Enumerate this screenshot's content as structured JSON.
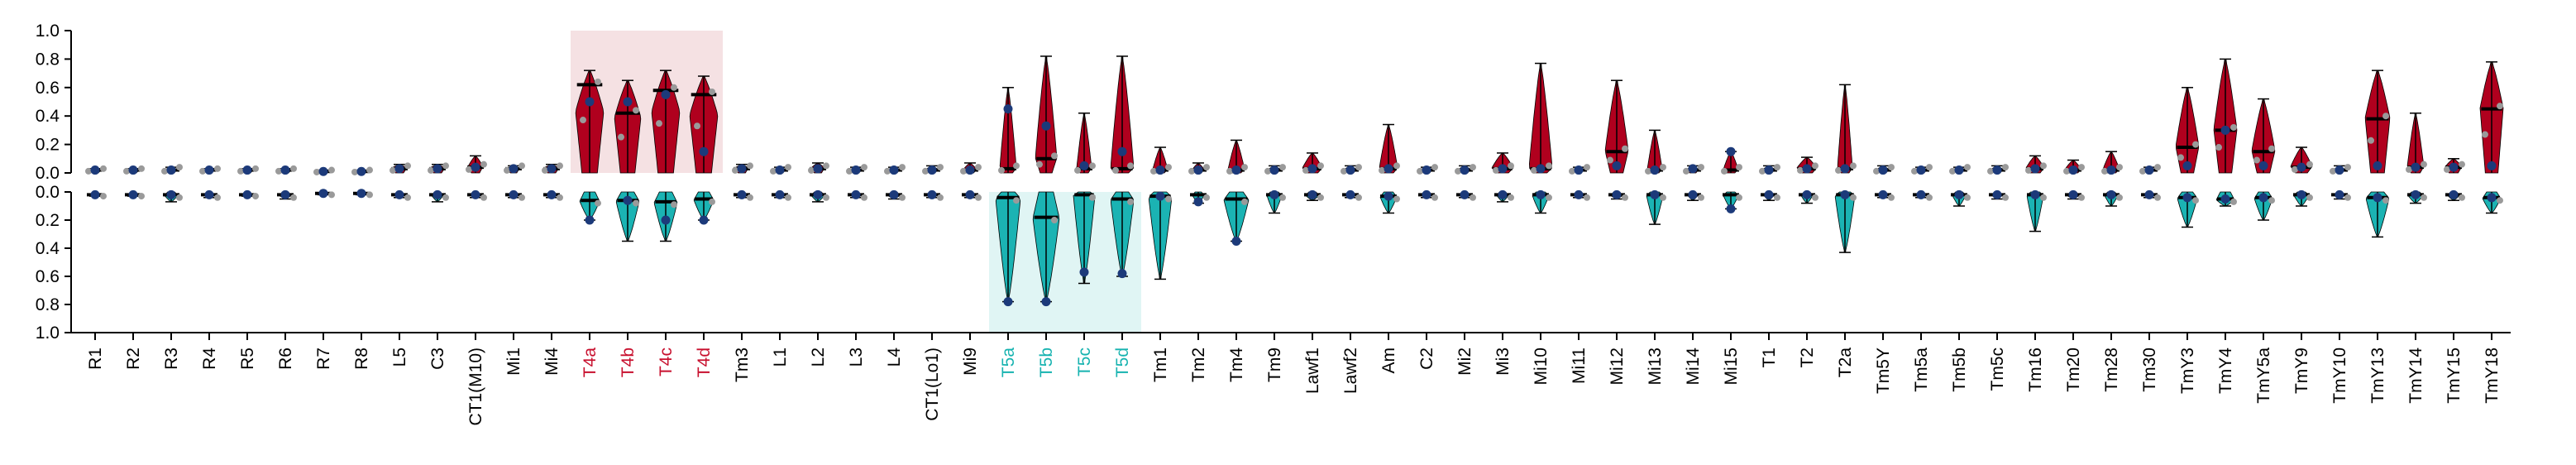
{
  "chart_data": {
    "type": "violin",
    "categories": [
      "R1",
      "R2",
      "R3",
      "R4",
      "R5",
      "R6",
      "R7",
      "R8",
      "L5",
      "C3",
      "CT1(M10)",
      "Mi1",
      "Mi4",
      "T4a",
      "T4b",
      "T4c",
      "T4d",
      "Tm3",
      "L1",
      "L2",
      "L3",
      "L4",
      "CT1(Lo1)",
      "Mi9",
      "T5a",
      "T5b",
      "T5c",
      "T5d",
      "Tm1",
      "Tm2",
      "Tm4",
      "Tm9",
      "Lawf1",
      "Lawf2",
      "Am",
      "C2",
      "Mi2",
      "Mi3",
      "Mi10",
      "Mi11",
      "Mi12",
      "Mi13",
      "Mi14",
      "Mi15",
      "T1",
      "T2",
      "T2a",
      "Tm5Y",
      "Tm5a",
      "Tm5b",
      "Tm5c",
      "Tm16",
      "Tm20",
      "Tm28",
      "Tm30",
      "TmY3",
      "TmY4",
      "TmY5a",
      "TmY9",
      "TmY10",
      "TmY13",
      "TmY14",
      "TmY15",
      "TmY18"
    ],
    "y_ticks": [
      "0.0",
      "0.2",
      "0.4",
      "0.6",
      "0.8",
      "1.0"
    ],
    "ylim": [
      0,
      1
    ],
    "colors": {
      "top": "#b0001e",
      "bottom": "#1bb3b3",
      "highlight_top": "#f5e1e3",
      "highlight_bottom": "#e0f5f4",
      "label_top_highlight": "#c8102e",
      "label_bottom_highlight": "#17b3b0",
      "median_dot": "#1c3a7a",
      "points": "#9a9a9a"
    },
    "highlight_top": [
      "T4a",
      "T4b",
      "T4c",
      "T4d"
    ],
    "highlight_bottom": [
      "T5a",
      "T5b",
      "T5c",
      "T5d"
    ],
    "top_median": [
      0.02,
      0.02,
      0.02,
      0.02,
      0.02,
      0.02,
      0.01,
      0.01,
      0.03,
      0.03,
      0.04,
      0.03,
      0.03,
      0.62,
      0.42,
      0.58,
      0.55,
      0.03,
      0.02,
      0.03,
      0.02,
      0.02,
      0.02,
      0.02,
      0.03,
      0.1,
      0.03,
      0.03,
      0.02,
      0.02,
      0.02,
      0.02,
      0.03,
      0.02,
      0.03,
      0.02,
      0.02,
      0.03,
      0.03,
      0.02,
      0.15,
      0.02,
      0.02,
      0.02,
      0.02,
      0.03,
      0.03,
      0.02,
      0.02,
      0.02,
      0.02,
      0.03,
      0.02,
      0.02,
      0.02,
      0.18,
      0.3,
      0.15,
      0.04,
      0.02,
      0.38,
      0.04,
      0.04,
      0.45
    ],
    "top_max": [
      0.03,
      0.03,
      0.04,
      0.03,
      0.03,
      0.03,
      0.02,
      0.02,
      0.06,
      0.06,
      0.12,
      0.05,
      0.06,
      0.72,
      0.65,
      0.72,
      0.68,
      0.06,
      0.04,
      0.07,
      0.04,
      0.04,
      0.05,
      0.07,
      0.6,
      0.82,
      0.42,
      0.82,
      0.18,
      0.07,
      0.23,
      0.05,
      0.14,
      0.05,
      0.34,
      0.04,
      0.05,
      0.14,
      0.77,
      0.04,
      0.65,
      0.3,
      0.05,
      0.15,
      0.05,
      0.11,
      0.62,
      0.05,
      0.04,
      0.04,
      0.05,
      0.12,
      0.09,
      0.15,
      0.04,
      0.6,
      0.8,
      0.52,
      0.18,
      0.05,
      0.72,
      0.42,
      0.1,
      0.78
    ],
    "top_width": [
      0.35,
      0.35,
      0.35,
      0.3,
      0.35,
      0.35,
      0.3,
      0.3,
      0.45,
      0.45,
      0.45,
      0.35,
      0.45,
      0.85,
      0.8,
      0.85,
      0.85,
      0.4,
      0.35,
      0.4,
      0.35,
      0.35,
      0.35,
      0.4,
      0.5,
      0.65,
      0.45,
      0.7,
      0.45,
      0.35,
      0.5,
      0.35,
      0.6,
      0.35,
      0.55,
      0.35,
      0.35,
      0.65,
      0.7,
      0.3,
      0.7,
      0.45,
      0.35,
      0.45,
      0.35,
      0.6,
      0.45,
      0.35,
      0.35,
      0.3,
      0.35,
      0.55,
      0.5,
      0.5,
      0.3,
      0.7,
      0.7,
      0.7,
      0.65,
      0.3,
      0.75,
      0.5,
      0.5,
      0.7
    ],
    "top_dot": [
      0.02,
      0.02,
      0.02,
      0.02,
      0.02,
      0.02,
      0.01,
      0.01,
      0.03,
      0.03,
      0.04,
      0.03,
      0.03,
      0.5,
      0.5,
      0.55,
      0.15,
      0.03,
      0.02,
      0.03,
      0.02,
      0.02,
      0.02,
      0.02,
      0.45,
      0.33,
      0.05,
      0.15,
      0.02,
      0.02,
      0.02,
      0.02,
      0.03,
      0.02,
      0.03,
      0.02,
      0.02,
      0.03,
      0.03,
      0.02,
      0.05,
      0.02,
      0.03,
      0.15,
      0.02,
      0.03,
      0.03,
      0.02,
      0.02,
      0.02,
      0.02,
      0.03,
      0.02,
      0.02,
      0.02,
      0.05,
      0.3,
      0.05,
      0.04,
      0.02,
      0.05,
      0.04,
      0.04,
      0.05
    ],
    "bottom_median": [
      0.02,
      0.02,
      0.02,
      0.02,
      0.02,
      0.02,
      0.01,
      0.01,
      0.02,
      0.02,
      0.02,
      0.02,
      0.02,
      0.06,
      0.06,
      0.07,
      0.05,
      0.02,
      0.02,
      0.02,
      0.02,
      0.02,
      0.02,
      0.02,
      0.04,
      0.18,
      0.02,
      0.05,
      0.03,
      0.02,
      0.05,
      0.02,
      0.02,
      0.02,
      0.03,
      0.02,
      0.02,
      0.02,
      0.02,
      0.02,
      0.02,
      0.02,
      0.02,
      0.02,
      0.02,
      0.02,
      0.02,
      0.02,
      0.02,
      0.02,
      0.02,
      0.02,
      0.02,
      0.02,
      0.02,
      0.04,
      0.05,
      0.04,
      0.02,
      0.02,
      0.04,
      0.02,
      0.02,
      0.04
    ],
    "bottom_max": [
      0.03,
      0.03,
      0.07,
      0.04,
      0.03,
      0.05,
      0.02,
      0.02,
      0.04,
      0.07,
      0.04,
      0.04,
      0.04,
      0.2,
      0.35,
      0.35,
      0.2,
      0.04,
      0.04,
      0.07,
      0.04,
      0.05,
      0.04,
      0.04,
      0.78,
      0.78,
      0.65,
      0.6,
      0.62,
      0.08,
      0.35,
      0.15,
      0.06,
      0.04,
      0.15,
      0.04,
      0.04,
      0.07,
      0.15,
      0.04,
      0.05,
      0.23,
      0.06,
      0.12,
      0.06,
      0.08,
      0.43,
      0.04,
      0.04,
      0.1,
      0.05,
      0.28,
      0.05,
      0.1,
      0.04,
      0.25,
      0.1,
      0.2,
      0.1,
      0.05,
      0.32,
      0.08,
      0.06,
      0.15
    ],
    "bottom_width": [
      0.3,
      0.3,
      0.4,
      0.3,
      0.3,
      0.35,
      0.3,
      0.3,
      0.3,
      0.35,
      0.3,
      0.3,
      0.3,
      0.6,
      0.7,
      0.7,
      0.6,
      0.3,
      0.3,
      0.4,
      0.3,
      0.35,
      0.3,
      0.3,
      0.75,
      0.8,
      0.65,
      0.7,
      0.7,
      0.35,
      0.75,
      0.45,
      0.4,
      0.3,
      0.5,
      0.3,
      0.3,
      0.35,
      0.5,
      0.3,
      0.35,
      0.5,
      0.3,
      0.45,
      0.3,
      0.35,
      0.6,
      0.3,
      0.3,
      0.4,
      0.3,
      0.5,
      0.35,
      0.4,
      0.3,
      0.6,
      0.55,
      0.55,
      0.45,
      0.3,
      0.7,
      0.45,
      0.35,
      0.55
    ],
    "bottom_dot": [
      0.02,
      0.02,
      0.02,
      0.02,
      0.02,
      0.02,
      0.01,
      0.01,
      0.02,
      0.02,
      0.02,
      0.02,
      0.02,
      0.2,
      0.06,
      0.2,
      0.2,
      0.02,
      0.02,
      0.02,
      0.02,
      0.02,
      0.02,
      0.02,
      0.78,
      0.78,
      0.57,
      0.58,
      0.03,
      0.07,
      0.35,
      0.02,
      0.02,
      0.02,
      0.03,
      0.02,
      0.02,
      0.02,
      0.02,
      0.02,
      0.02,
      0.02,
      0.02,
      0.12,
      0.02,
      0.02,
      0.02,
      0.02,
      0.02,
      0.02,
      0.02,
      0.02,
      0.02,
      0.02,
      0.02,
      0.04,
      0.05,
      0.04,
      0.02,
      0.02,
      0.04,
      0.02,
      0.02,
      0.04
    ]
  }
}
